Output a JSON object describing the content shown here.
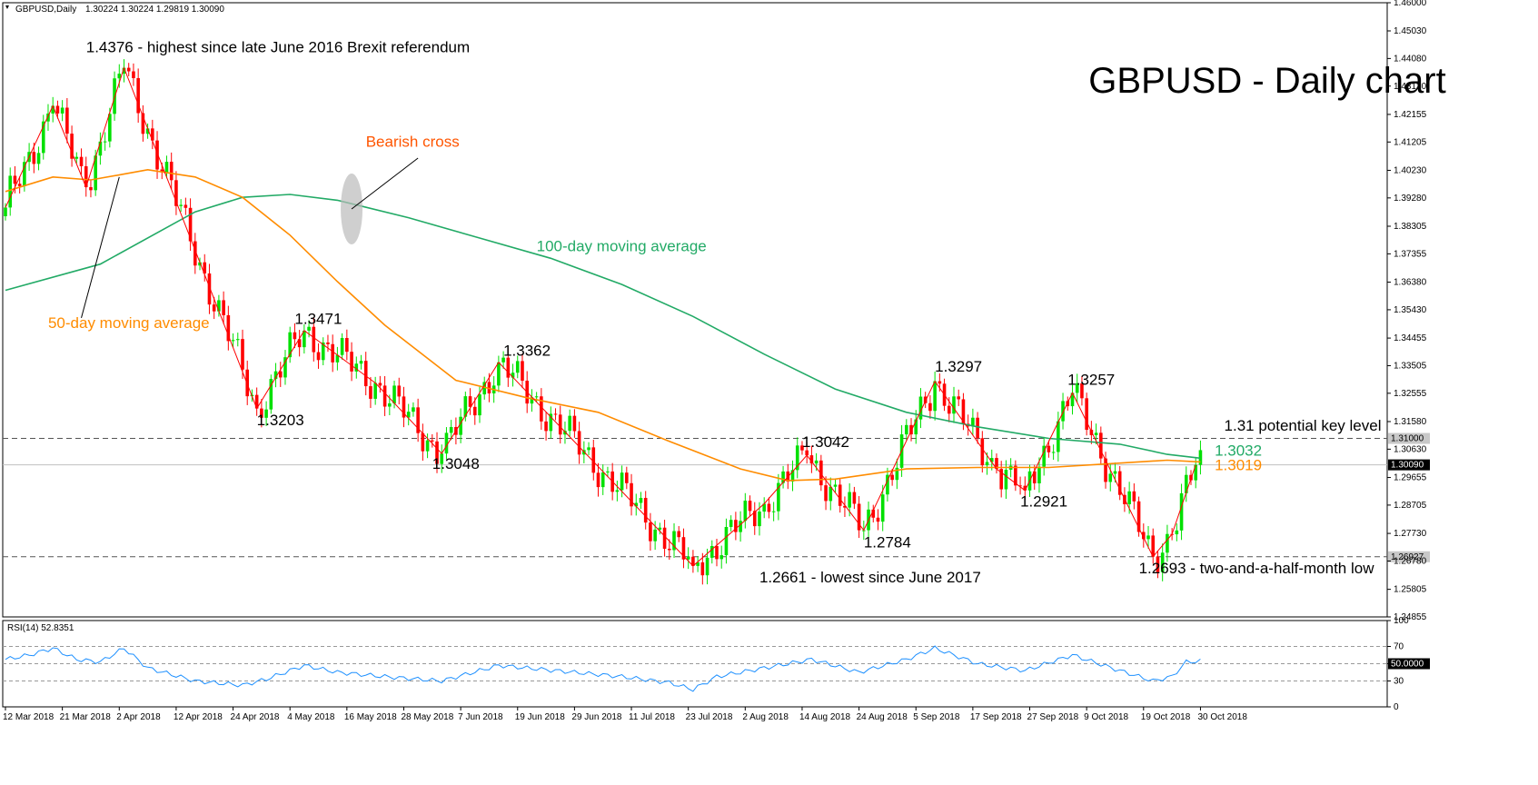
{
  "header": {
    "symbol_label": "GBPUSD,Daily",
    "ohlc": "1.30224 1.30224 1.29819 1.30090"
  },
  "title": "GBPUSD - Daily chart",
  "colors": {
    "bull": "#00e000",
    "bear": "#ff0000",
    "ma50": "#ff8c00",
    "ma100": "#22aa66",
    "rsi": "#1e90ff",
    "trend": "#ff0000"
  },
  "chart_data": [
    {
      "type": "candlestick",
      "title": "GBPUSD - Daily chart",
      "ylim": [
        1.24855,
        1.46
      ],
      "y_ticks": [
        "1.46000",
        "1.45030",
        "1.44080",
        "1.43130",
        "1.42155",
        "1.41205",
        "1.40230",
        "1.39280",
        "1.38305",
        "1.37355",
        "1.36380",
        "1.35430",
        "1.34455",
        "1.33505",
        "1.32555",
        "1.31580",
        "1.30630",
        "1.29655",
        "1.28705",
        "1.27730",
        "1.26780",
        "1.25805",
        "1.24855"
      ],
      "x_labels": [
        "12 Mar 2018",
        "21 Mar 2018",
        "2 Apr 2018",
        "12 Apr 2018",
        "24 Apr 2018",
        "4 May 2018",
        "16 May 2018",
        "28 May 2018",
        "7 Jun 2018",
        "19 Jun 2018",
        "29 Jun 2018",
        "11 Jul 2018",
        "23 Jul 2018",
        "2 Aug 2018",
        "14 Aug 2018",
        "24 Aug 2018",
        "5 Sep 2018",
        "17 Sep 2018",
        "27 Sep 2018",
        "9 Oct 2018",
        "19 Oct 2018",
        "30 Oct 2018"
      ],
      "pivots": [
        {
          "i": 0,
          "v": 1.3895
        },
        {
          "i": 10,
          "v": 1.4245
        },
        {
          "i": 17,
          "v": 1.3965
        },
        {
          "i": 25,
          "v": 1.4376
        },
        {
          "i": 53,
          "v": 1.3203
        },
        {
          "i": 63,
          "v": 1.3471
        },
        {
          "i": 78,
          "v": 1.3291
        },
        {
          "i": 92,
          "v": 1.3048
        },
        {
          "i": 104,
          "v": 1.3362
        },
        {
          "i": 145,
          "v": 1.2661
        },
        {
          "i": 160,
          "v": 1.2875
        },
        {
          "i": 169,
          "v": 1.3042
        },
        {
          "i": 181,
          "v": 1.2784
        },
        {
          "i": 196,
          "v": 1.3297
        },
        {
          "i": 209,
          "v": 1.2995
        },
        {
          "i": 215,
          "v": 1.2921
        },
        {
          "i": 225,
          "v": 1.3257
        },
        {
          "i": 242,
          "v": 1.2693
        },
        {
          "i": 246,
          "v": 1.277
        },
        {
          "i": 251,
          "v": 1.3009
        }
      ],
      "series": [
        {
          "name": "100-day moving average",
          "points": [
            [
              0,
              1.361
            ],
            [
              20,
              1.37
            ],
            [
              40,
              1.388
            ],
            [
              50,
              1.393
            ],
            [
              60,
              1.394
            ],
            [
              70,
              1.392
            ],
            [
              85,
              1.386
            ],
            [
              100,
              1.379
            ],
            [
              115,
              1.372
            ],
            [
              130,
              1.363
            ],
            [
              145,
              1.352
            ],
            [
              160,
              1.339
            ],
            [
              175,
              1.327
            ],
            [
              190,
              1.319
            ],
            [
              205,
              1.314
            ],
            [
              220,
              1.31
            ],
            [
              235,
              1.308
            ],
            [
              245,
              1.3045
            ],
            [
              252,
              1.3032
            ]
          ]
        },
        {
          "name": "50-day moving average",
          "points": [
            [
              0,
              1.395
            ],
            [
              10,
              1.4
            ],
            [
              18,
              1.399
            ],
            [
              25,
              1.401
            ],
            [
              30,
              1.4025
            ],
            [
              40,
              1.4
            ],
            [
              50,
              1.393
            ],
            [
              60,
              1.38
            ],
            [
              70,
              1.364
            ],
            [
              80,
              1.349
            ],
            [
              95,
              1.33
            ],
            [
              110,
              1.324
            ],
            [
              125,
              1.319
            ],
            [
              140,
              1.309
            ],
            [
              155,
              1.2995
            ],
            [
              165,
              1.2955
            ],
            [
              175,
              1.296
            ],
            [
              190,
              1.2995
            ],
            [
              205,
              1.3
            ],
            [
              220,
              1.3
            ],
            [
              235,
              1.3015
            ],
            [
              245,
              1.3025
            ],
            [
              252,
              1.3019
            ]
          ]
        }
      ],
      "levels": [
        {
          "value": 1.31,
          "label": "1.31000",
          "style": "dashed"
        },
        {
          "value": 1.3009,
          "label": "1.30090",
          "style": "solid"
        },
        {
          "value": 1.26927,
          "label": "1.26927",
          "style": "dashed"
        }
      ],
      "annotations": [
        {
          "text": "1.4376 - highest since late June 2016 Brexit referendum",
          "i": 17,
          "v": 1.443
        },
        {
          "text": "Bearish cross",
          "i": 76,
          "v": 1.4105
        },
        {
          "text": "100-day moving average",
          "i": 112,
          "v": 1.3745
        },
        {
          "text": "50-day moving average",
          "i": 9,
          "v": 1.348
        },
        {
          "text": "1.3471",
          "i": 61,
          "v": 1.3495
        },
        {
          "text": "1.3203",
          "i": 53,
          "v": 1.3145
        },
        {
          "text": "1.3362",
          "i": 105,
          "v": 1.3385
        },
        {
          "text": "1.3048",
          "i": 90,
          "v": 1.2995
        },
        {
          "text": "1.3042",
          "i": 168,
          "v": 1.307
        },
        {
          "text": "1.2784",
          "i": 181,
          "v": 1.2725
        },
        {
          "text": "1.3297",
          "i": 196,
          "v": 1.333
        },
        {
          "text": "1.2921",
          "i": 214,
          "v": 1.2865
        },
        {
          "text": "1.3257",
          "i": 224,
          "v": 1.3285
        },
        {
          "text": "1.2661 - lowest since June 2017",
          "i": 159,
          "v": 1.2605
        },
        {
          "text": "1.2693 - two-and-a-half-month low",
          "i": 239,
          "v": 1.2635
        },
        {
          "text": "1.31 potential key level",
          "i": 257,
          "v": 1.3127
        },
        {
          "text": "1.3032",
          "i": 255,
          "v": 1.304
        },
        {
          "text": "1.3019",
          "i": 255,
          "v": 1.299
        }
      ]
    },
    {
      "type": "line",
      "name": "RSI(14) 52.8351",
      "ylim": [
        0,
        100
      ],
      "y_ticks": [
        100,
        70,
        50,
        30,
        0
      ],
      "levels": [
        {
          "value": 50,
          "label": "50.0000"
        }
      ],
      "points": [
        [
          0,
          55
        ],
        [
          5,
          60
        ],
        [
          10,
          68
        ],
        [
          15,
          55
        ],
        [
          20,
          52
        ],
        [
          25,
          68
        ],
        [
          30,
          45
        ],
        [
          40,
          30
        ],
        [
          50,
          25
        ],
        [
          55,
          32
        ],
        [
          63,
          48
        ],
        [
          70,
          40
        ],
        [
          80,
          35
        ],
        [
          92,
          30
        ],
        [
          104,
          48
        ],
        [
          110,
          45
        ],
        [
          120,
          40
        ],
        [
          130,
          35
        ],
        [
          140,
          28
        ],
        [
          145,
          20
        ],
        [
          150,
          35
        ],
        [
          160,
          45
        ],
        [
          170,
          55
        ],
        [
          180,
          40
        ],
        [
          190,
          55
        ],
        [
          196,
          68
        ],
        [
          205,
          50
        ],
        [
          215,
          42
        ],
        [
          225,
          60
        ],
        [
          235,
          42
        ],
        [
          242,
          30
        ],
        [
          246,
          35
        ],
        [
          249,
          52
        ],
        [
          252,
          53
        ]
      ]
    }
  ]
}
